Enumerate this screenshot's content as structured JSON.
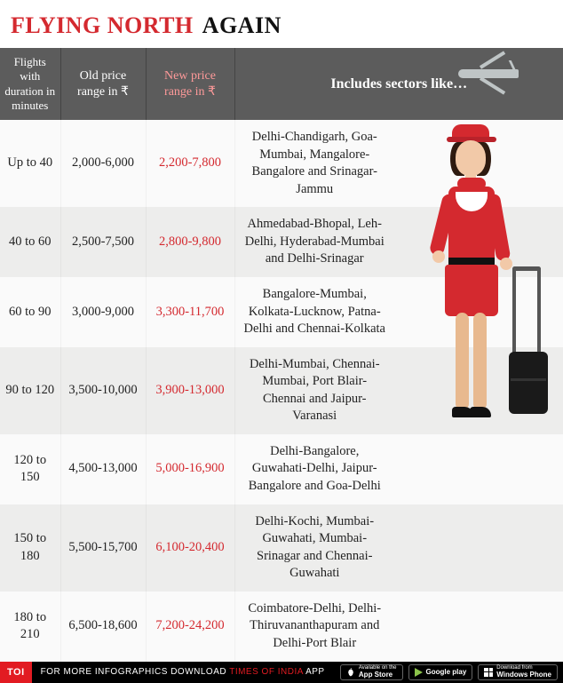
{
  "title": {
    "red": "FLYING NORTH",
    "black": "AGAIN"
  },
  "headers": {
    "duration": "Flights with duration in minutes",
    "old": "Old price range in ₹",
    "new": "New price range in ₹",
    "sectors": "Includes sectors like…"
  },
  "rows": [
    {
      "duration": "Up to 40",
      "old": "2,000-6,000",
      "new": "2,200-7,800",
      "sectors": "Delhi-Chandigarh, Goa-Mumbai, Mangalore-Bangalore and Srinagar-Jammu"
    },
    {
      "duration": "40 to 60",
      "old": "2,500-7,500",
      "new": "2,800-9,800",
      "sectors": "Ahmedabad-Bhopal, Leh-Delhi, Hyderabad-Mumbai and Delhi-Srinagar"
    },
    {
      "duration": "60 to 90",
      "old": "3,000-9,000",
      "new": "3,300-11,700",
      "sectors": "Bangalore-Mumbai, Kolkata-Lucknow, Patna-Delhi and Chennai-Kolkata"
    },
    {
      "duration": "90 to 120",
      "old": "3,500-10,000",
      "new": "3,900-13,000",
      "sectors": "Delhi-Mumbai, Chennai-Mumbai, Port Blair-Chennai and Jaipur-Varanasi"
    },
    {
      "duration": "120 to 150",
      "old": "4,500-13,000",
      "new": "5,000-16,900",
      "sectors": "Delhi-Bangalore, Guwahati-Delhi, Jaipur-Bangalore and Goa-Delhi"
    },
    {
      "duration": "150 to 180",
      "old": "5,500-15,700",
      "new": "6,100-20,400",
      "sectors": "Delhi-Kochi, Mumbai-Guwahati, Mumbai-Srinagar and Chennai-Guwahati"
    },
    {
      "duration": "180 to 210",
      "old": "6,500-18,600",
      "new": "7,200-24,200",
      "sectors": "Coimbatore-Delhi, Delhi-Thiruvananthapuram and Delhi-Port Blair"
    }
  ],
  "footer": {
    "badge": "TOI",
    "lead": "FOR MORE",
    "mid": "INFOGRAPHICS DOWNLOAD",
    "brand": "TIMES OF INDIA",
    "tail": "APP",
    "stores": {
      "apple_top": "Available on the",
      "apple": "App Store",
      "google": "Google play",
      "win_top": "Download from",
      "win": "Windows Phone"
    }
  }
}
